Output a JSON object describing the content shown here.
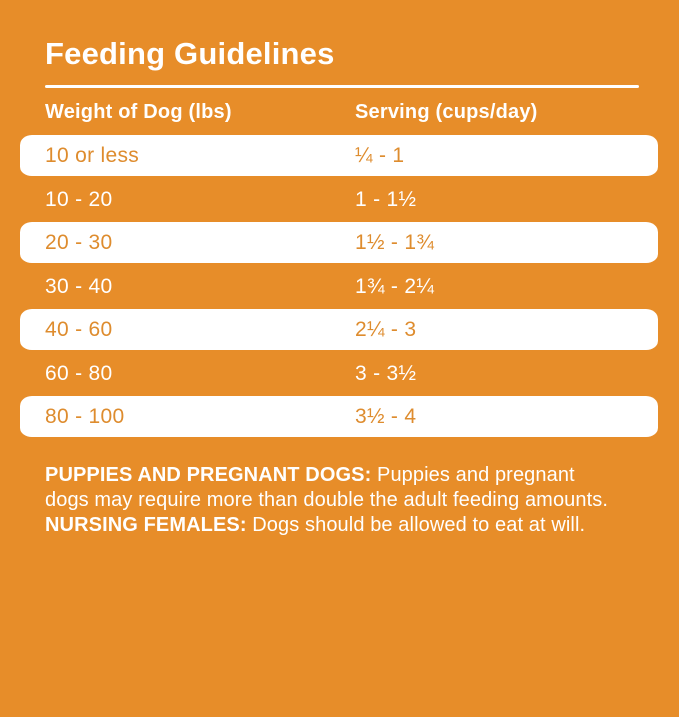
{
  "title": "Feeding Guidelines",
  "colors": {
    "background_orange": "#E78D29",
    "row_text_orange": "#DE8C2E",
    "text_white": "#FFFFFF"
  },
  "table": {
    "headers": {
      "weight": "Weight of Dog (lbs)",
      "serving": "Serving (cups/day)"
    },
    "rows": [
      {
        "weight": "10 or less",
        "serving": "¼ - 1",
        "highlighted": true
      },
      {
        "weight": "10 - 20",
        "serving": "1 - 1½",
        "highlighted": false
      },
      {
        "weight": "20 - 30",
        "serving": "1½ - 1¾",
        "highlighted": true
      },
      {
        "weight": "30 - 40",
        "serving": "1¾ - 2¼",
        "highlighted": false
      },
      {
        "weight": "40 - 60",
        "serving": "2¼ - 3",
        "highlighted": true
      },
      {
        "weight": "60 - 80",
        "serving": "3 - 3½",
        "highlighted": false
      },
      {
        "weight": "80 - 100",
        "serving": "3½ - 4",
        "highlighted": true
      }
    ]
  },
  "footnote": {
    "segments": [
      {
        "text": "PUPPIES AND PREGNANT DOGS:",
        "bold": true
      },
      {
        "text": " Puppies and pregnant dogs may require more than double the adult feeding amounts. ",
        "bold": false
      },
      {
        "text": "NURSING FEMALES:",
        "bold": true
      },
      {
        "text": " Dogs should be allowed to eat at will.",
        "bold": false
      }
    ]
  }
}
